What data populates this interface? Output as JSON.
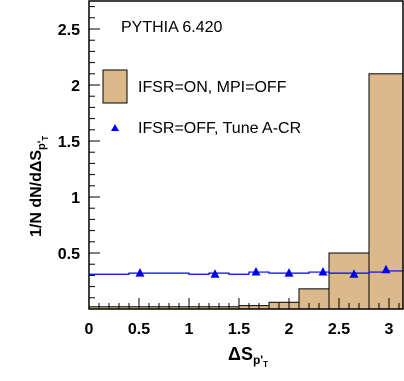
{
  "chart_data": {
    "type": "bar",
    "title": "",
    "annotation": "PYTHIA 6.420",
    "xlabel": "ΔS",
    "xlabel_sub": "p'",
    "xlabel_subsub": "T",
    "ylabel": "1/N dN/dΔS",
    "ylabel_sub": "p'",
    "ylabel_subsub": "T",
    "xlim": [
      0,
      3.14
    ],
    "ylim": [
      0,
      2.75
    ],
    "x_ticks": [
      0,
      0.5,
      1,
      1.5,
      2,
      2.5,
      3
    ],
    "x_tick_labels": [
      "0",
      "0.5",
      "1",
      "1.5",
      "2",
      "2.5",
      "3"
    ],
    "y_ticks": [
      0.5,
      1,
      1.5,
      2,
      2.5
    ],
    "y_tick_labels": [
      "0.5",
      "1",
      "1.5",
      "2",
      "2.5"
    ],
    "legend_position": "upper-left",
    "series": [
      {
        "name": "IFSR=ON, MPI=OFF",
        "style": "filled histogram",
        "color": "#dcb98a",
        "edge_color": "#000000",
        "bin_edges": [
          0,
          0.3,
          0.6,
          0.9,
          1.2,
          1.5,
          1.8,
          2.1,
          2.4,
          2.8,
          3.14
        ],
        "values": [
          0.02,
          0.02,
          0.02,
          0.02,
          0.02,
          0.03,
          0.06,
          0.18,
          0.5,
          2.1
        ]
      },
      {
        "name": "IFSR=OFF, Tune A-CR",
        "style": "markers with step line",
        "color": "#0000ee",
        "bin_edges": [
          0,
          0.2,
          0.4,
          0.6,
          0.8,
          1.0,
          1.2,
          1.4,
          1.6,
          1.8,
          2.0,
          2.2,
          2.4,
          2.6,
          2.8,
          3.0,
          3.14
        ],
        "step_values": [
          0.31,
          0.31,
          0.32,
          0.32,
          0.32,
          0.31,
          0.32,
          0.31,
          0.33,
          0.32,
          0.32,
          0.33,
          0.32,
          0.32,
          0.33,
          0.34
        ],
        "x": [
          0.51,
          1.26,
          1.67,
          2.0,
          2.34,
          2.65,
          2.97
        ],
        "y": [
          0.32,
          0.31,
          0.33,
          0.32,
          0.33,
          0.31,
          0.35
        ]
      }
    ]
  }
}
